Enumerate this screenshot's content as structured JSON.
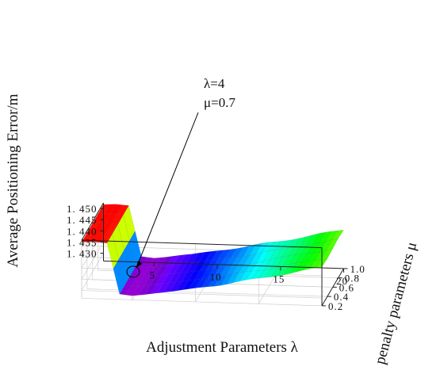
{
  "chart_data": {
    "type": "surface",
    "xlabel": "Adjustment Parameters λ",
    "ylabel": "penalty parameters μ",
    "zlabel": "Average Positioning Error/m",
    "x_ticks": [
      "5",
      "10",
      "15",
      "20"
    ],
    "y_ticks": [
      "0.2",
      "0.4",
      "0.6",
      "0.8",
      "1.0"
    ],
    "z_ticks": [
      "1.450",
      "1.445",
      "1.440",
      "1.435",
      "1.430"
    ],
    "z_tick_display": [
      "1. 450",
      "1. 445",
      "1. 440",
      "1. 435",
      "1. 430"
    ],
    "xlim": [
      1,
      20
    ],
    "ylim": [
      0.2,
      1.0
    ],
    "zlim": [
      1.4265,
      1.4525
    ],
    "grid": true,
    "colormap": "rainbow",
    "annotation": {
      "lines": [
        "λ=4",
        "μ=0.7"
      ],
      "point": {
        "lambda": 4,
        "mu": 0.7,
        "error": 1.4285
      }
    },
    "surface_profile": {
      "lambda": [
        1,
        2,
        3,
        4,
        5,
        6,
        7,
        8,
        9,
        10,
        11,
        12,
        13,
        14,
        15,
        16,
        17,
        18,
        19,
        20
      ],
      "error": [
        1.4517,
        1.452,
        1.4516,
        1.429,
        1.4284,
        1.4291,
        1.43,
        1.4308,
        1.4317,
        1.4326,
        1.4336,
        1.4346,
        1.4357,
        1.4368,
        1.4378,
        1.439,
        1.4402,
        1.4414,
        1.4426,
        1.4438
      ]
    }
  }
}
